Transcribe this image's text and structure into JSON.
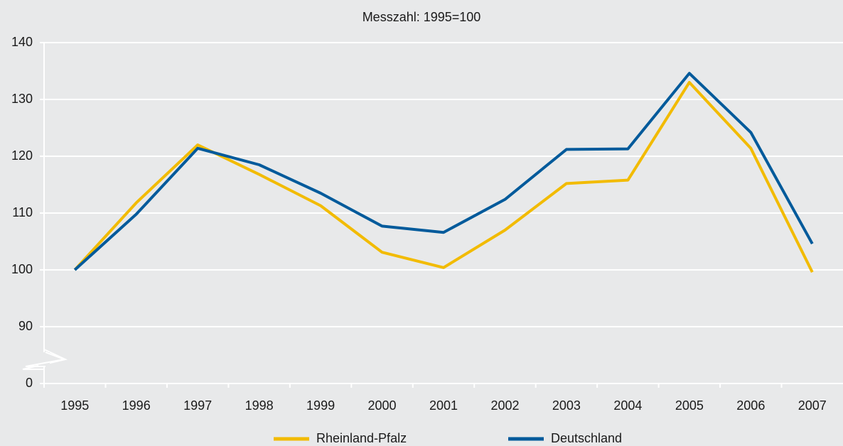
{
  "chart_data": {
    "type": "line",
    "title": "Messzahl: 1995=100",
    "categories": [
      "1995",
      "1996",
      "1997",
      "1998",
      "1999",
      "2000",
      "2001",
      "2002",
      "2003",
      "2004",
      "2005",
      "2006",
      "2007"
    ],
    "series": [
      {
        "name": "Rheinland-Pfalz",
        "color": "#f2bb00",
        "values": [
          100,
          111.8,
          122,
          116.8,
          111.3,
          103.1,
          100.4,
          107,
          115.2,
          115.8,
          133,
          121.4,
          99.6
        ]
      },
      {
        "name": "Deutschland",
        "color": "#005a9b",
        "values": [
          100,
          109.8,
          121.4,
          118.5,
          113.5,
          107.7,
          106.6,
          112.4,
          121.2,
          121.3,
          134.6,
          124.2,
          104.6
        ]
      }
    ],
    "ylim": [
      0,
      140
    ],
    "yticks": [
      0,
      90,
      100,
      110,
      120,
      130,
      140
    ],
    "axis_break": [
      0,
      90
    ],
    "grid": true,
    "legend": "bottom"
  }
}
